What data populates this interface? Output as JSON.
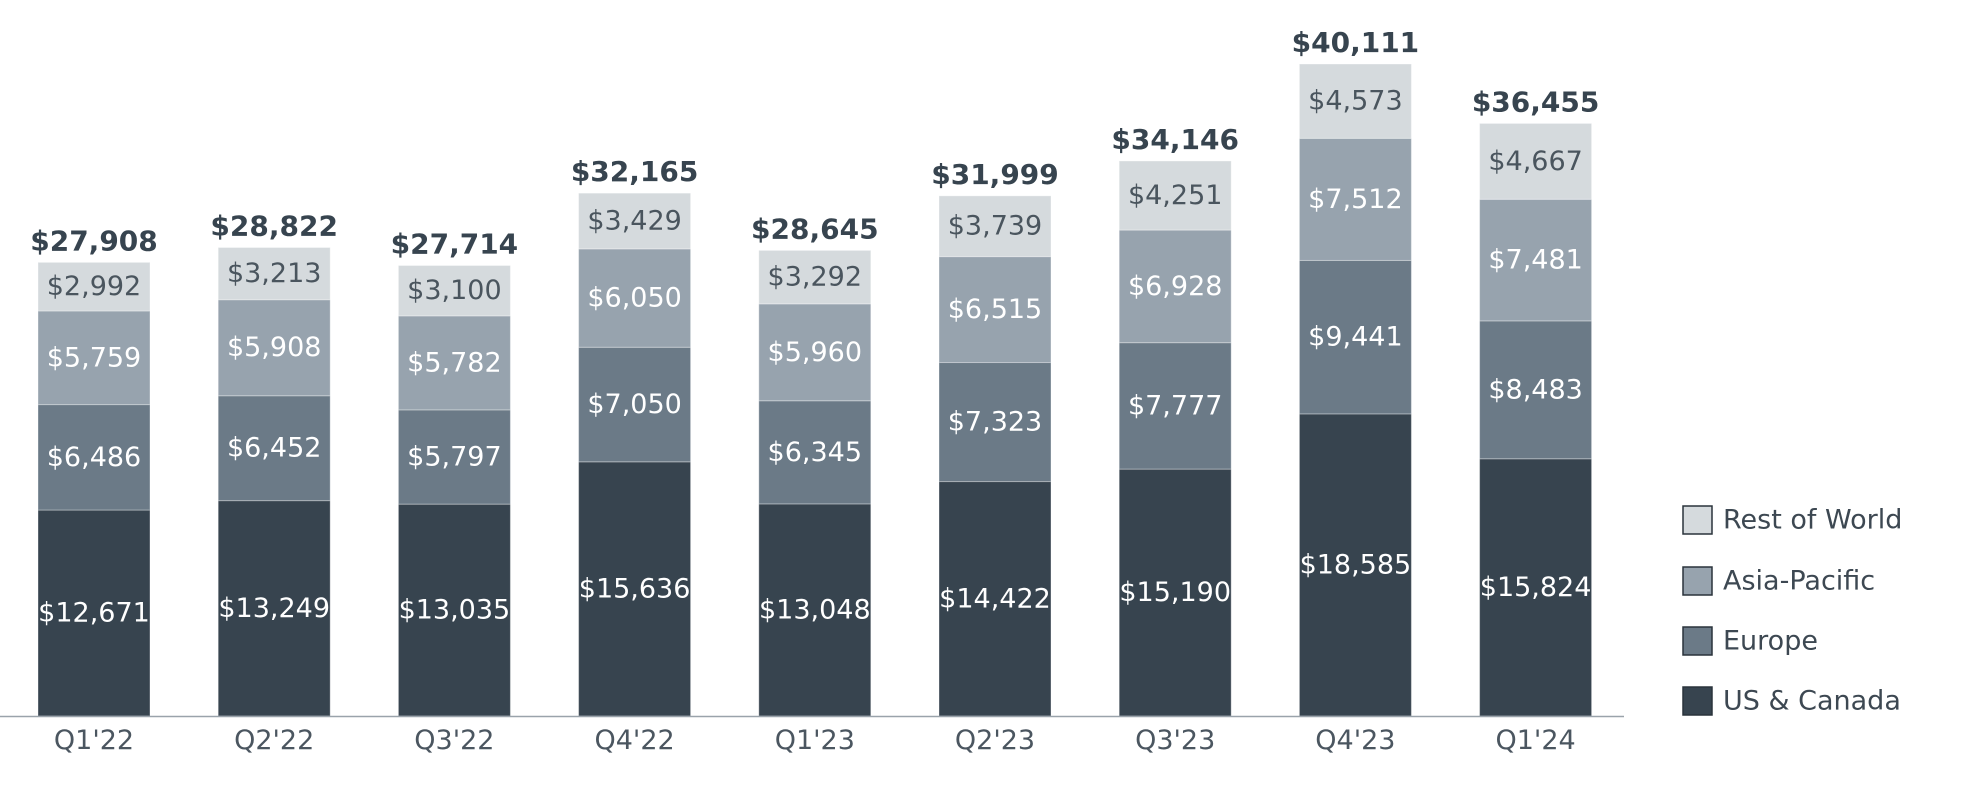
{
  "chart_data": {
    "type": "bar",
    "stacked": true,
    "title": "",
    "xlabel": "",
    "ylabel": "",
    "ylim": [
      0,
      40111
    ],
    "grid": false,
    "legend_position": "right",
    "categories": [
      "Q1'22",
      "Q2'22",
      "Q3'22",
      "Q4'22",
      "Q1'23",
      "Q2'23",
      "Q3'23",
      "Q4'23",
      "Q1'24"
    ],
    "series": [
      {
        "name": "US & Canada",
        "color": "#37444f",
        "values": [
          12671,
          13249,
          13035,
          15636,
          13048,
          14422,
          15190,
          18585,
          15824
        ],
        "labels": [
          "$12,671",
          "$13,249",
          "$13,035",
          "$15,636",
          "$13,048",
          "$14,422",
          "$15,190",
          "$18,585",
          "$15,824"
        ]
      },
      {
        "name": "Europe",
        "color": "#6b7a87",
        "values": [
          6486,
          6452,
          5797,
          7050,
          6345,
          7323,
          7777,
          9441,
          8483
        ],
        "labels": [
          "$6,486",
          "$6,452",
          "$5,797",
          "$7,050",
          "$6,345",
          "$7,323",
          "$7,777",
          "$9,441",
          "$8,483"
        ]
      },
      {
        "name": "Asia-Pacific",
        "color": "#97a3ae",
        "values": [
          5759,
          5908,
          5782,
          6050,
          5960,
          6515,
          6928,
          7512,
          7481
        ],
        "labels": [
          "$5,759",
          "$5,908",
          "$5,782",
          "$6,050",
          "$5,960",
          "$6,515",
          "$6,928",
          "$7,512",
          "$7,481"
        ]
      },
      {
        "name": "Rest of World",
        "color": "#d5dadd",
        "values": [
          2992,
          3213,
          3100,
          3429,
          3292,
          3739,
          4251,
          4573,
          4667
        ],
        "labels": [
          "$2,992",
          "$3,213",
          "$3,100",
          "$3,429",
          "$3,292",
          "$3,739",
          "$4,251",
          "$4,573",
          "$4,667"
        ]
      }
    ],
    "totals": [
      27908,
      28822,
      27714,
      32165,
      28645,
      31999,
      34146,
      40111,
      36455
    ],
    "total_labels": [
      "$27,908",
      "$28,822",
      "$27,714",
      "$32,165",
      "$28,645",
      "$31,999",
      "$34,146",
      "$40,111",
      "$36,455"
    ],
    "legend_order": [
      "Rest of World",
      "Asia-Pacific",
      "Europe",
      "US & Canada"
    ]
  }
}
